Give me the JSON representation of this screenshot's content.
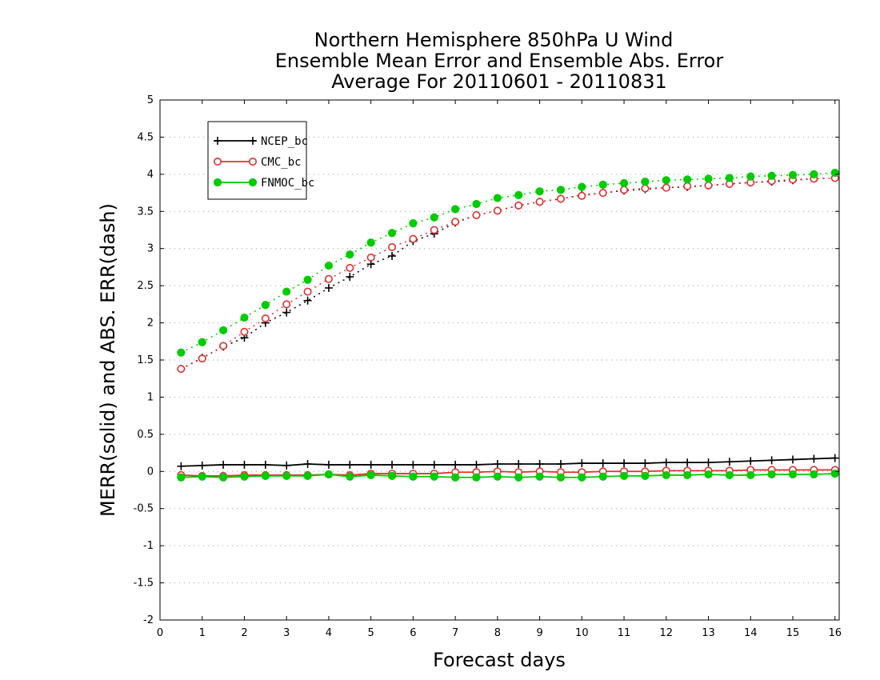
{
  "chart_data": {
    "type": "line",
    "title": [
      "Northern Hemisphere 850hPa U Wind",
      "Ensemble Mean Error and Ensemble Abs. Error",
      "Average For 20110601 - 20110831"
    ],
    "xlabel": "Forecast days",
    "ylabel": "MERR(solid) and ABS. ERR(dash)",
    "xlim": [
      0,
      16.1
    ],
    "ylim": [
      -2,
      5
    ],
    "xticks": [
      0,
      1,
      2,
      3,
      4,
      5,
      6,
      7,
      8,
      9,
      10,
      11,
      12,
      13,
      14,
      15,
      16
    ],
    "yticks": [
      -2,
      -1.5,
      -1,
      -0.5,
      0,
      0.5,
      1,
      1.5,
      2,
      2.5,
      3,
      3.5,
      4,
      4.5,
      5
    ],
    "grid": "horizontal dotted",
    "legend": "top-left",
    "x": [
      0.5,
      1,
      1.5,
      2,
      2.5,
      3,
      3.5,
      4,
      4.5,
      5,
      5.5,
      6,
      6.5,
      7,
      7.5,
      8,
      8.5,
      9,
      9.5,
      10,
      10.5,
      11,
      11.5,
      12,
      12.5,
      13,
      13.5,
      14,
      14.5,
      15,
      15.5,
      16
    ],
    "series": [
      {
        "name": "NCEP_bc",
        "color": "#000000",
        "marker": "plus",
        "merr": [
          0.07,
          0.08,
          0.09,
          0.09,
          0.09,
          0.08,
          0.1,
          0.09,
          0.09,
          0.09,
          0.09,
          0.09,
          0.09,
          0.09,
          0.09,
          0.1,
          0.1,
          0.1,
          0.1,
          0.11,
          0.11,
          0.11,
          0.11,
          0.12,
          0.12,
          0.12,
          0.13,
          0.14,
          0.15,
          0.16,
          0.17,
          0.18
        ],
        "abserr": [
          1.38,
          1.53,
          1.68,
          1.8,
          2.0,
          2.14,
          2.3,
          2.47,
          2.62,
          2.79,
          2.9,
          3.1,
          3.2,
          3.35,
          3.45,
          3.51,
          3.58,
          3.63,
          3.67,
          3.72,
          3.75,
          3.78,
          3.8,
          3.82,
          3.83,
          3.85,
          3.87,
          3.89,
          3.9,
          3.92,
          3.94,
          3.95
        ]
      },
      {
        "name": "CMC_bc",
        "color": "#e03030",
        "marker": "open-circle",
        "merr": [
          -0.05,
          -0.06,
          -0.06,
          -0.05,
          -0.05,
          -0.05,
          -0.05,
          -0.04,
          -0.05,
          -0.03,
          -0.03,
          -0.03,
          -0.03,
          -0.01,
          -0.01,
          0.0,
          -0.01,
          0.0,
          -0.01,
          -0.01,
          0.0,
          0.0,
          0.0,
          0.01,
          0.01,
          0.01,
          0.01,
          0.02,
          0.02,
          0.02,
          0.02,
          0.02
        ],
        "abserr": [
          1.38,
          1.52,
          1.69,
          1.88,
          2.06,
          2.25,
          2.42,
          2.59,
          2.74,
          2.88,
          3.02,
          3.13,
          3.25,
          3.36,
          3.45,
          3.51,
          3.58,
          3.63,
          3.67,
          3.71,
          3.75,
          3.79,
          3.81,
          3.82,
          3.84,
          3.85,
          3.87,
          3.89,
          3.91,
          3.93,
          3.94,
          3.95
        ]
      },
      {
        "name": "FNMOC_bc",
        "color": "#00cc00",
        "marker": "filled-circle",
        "merr": [
          -0.08,
          -0.07,
          -0.08,
          -0.07,
          -0.06,
          -0.06,
          -0.06,
          -0.04,
          -0.07,
          -0.05,
          -0.06,
          -0.07,
          -0.07,
          -0.08,
          -0.08,
          -0.07,
          -0.08,
          -0.07,
          -0.08,
          -0.08,
          -0.07,
          -0.06,
          -0.06,
          -0.05,
          -0.05,
          -0.04,
          -0.05,
          -0.05,
          -0.04,
          -0.04,
          -0.04,
          -0.03
        ],
        "abserr": [
          1.6,
          1.74,
          1.9,
          2.07,
          2.24,
          2.42,
          2.58,
          2.77,
          2.92,
          3.08,
          3.21,
          3.34,
          3.42,
          3.53,
          3.6,
          3.68,
          3.72,
          3.77,
          3.79,
          3.83,
          3.86,
          3.88,
          3.9,
          3.92,
          3.93,
          3.94,
          3.95,
          3.97,
          3.98,
          3.99,
          4.0,
          4.02
        ]
      }
    ]
  }
}
